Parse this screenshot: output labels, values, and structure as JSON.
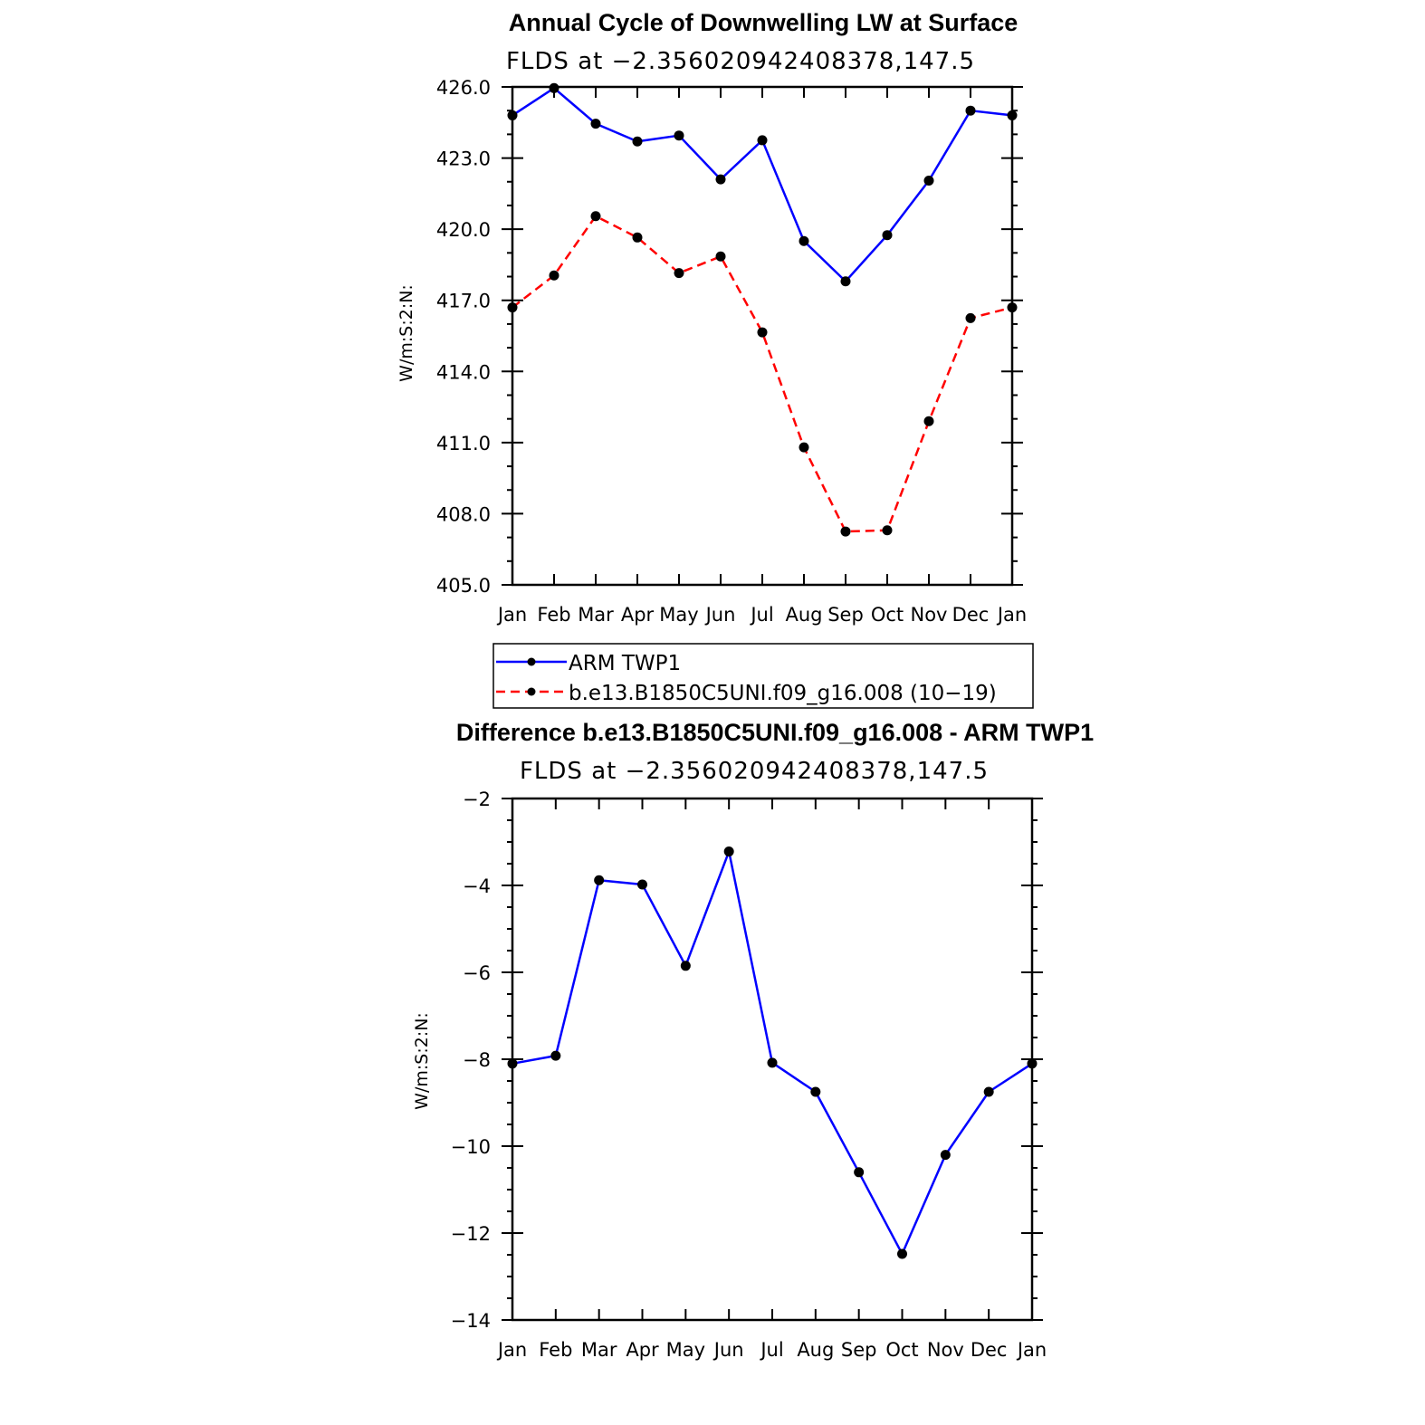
{
  "chart_data": [
    {
      "type": "line",
      "title": "Annual Cycle of Downwelling LW at Surface",
      "subtitle": "FLDS at −2.356020942408378,147.5",
      "ylabel": "W/m:S:2:N:",
      "xlabel": "",
      "categories": [
        "Jan",
        "Feb",
        "Mar",
        "Apr",
        "May",
        "Jun",
        "Jul",
        "Aug",
        "Sep",
        "Oct",
        "Nov",
        "Dec",
        "Jan"
      ],
      "ylim": [
        405.0,
        426.0
      ],
      "yticks": [
        "426.0",
        "423.0",
        "420.0",
        "417.0",
        "414.0",
        "411.0",
        "408.0",
        "405.0"
      ],
      "ytick_values": [
        426,
        423,
        420,
        417,
        414,
        411,
        408,
        405
      ],
      "grid": false,
      "legend_position": "below",
      "series": [
        {
          "name": "ARM TWP1",
          "color": "#0000ff",
          "dash": "solid",
          "marker": "dot",
          "values": [
            424.8,
            425.95,
            424.45,
            423.7,
            423.95,
            422.1,
            423.75,
            419.5,
            417.8,
            419.75,
            422.05,
            425.0,
            424.8
          ]
        },
        {
          "name": "b.e13.B1850C5UNI.f09_g16.008 (10−19)",
          "color": "#ff0000",
          "dash": "dashed",
          "marker": "dot",
          "values": [
            416.7,
            418.05,
            420.55,
            419.65,
            418.15,
            418.85,
            415.65,
            410.8,
            407.25,
            407.3,
            411.9,
            416.25,
            416.7
          ]
        }
      ]
    },
    {
      "type": "line",
      "title": "Difference b.e13.B1850C5UNI.f09_g16.008 - ARM TWP1",
      "subtitle": "FLDS at −2.356020942408378,147.5",
      "ylabel": "W/m:S:2:N:",
      "xlabel": "",
      "categories": [
        "Jan",
        "Feb",
        "Mar",
        "Apr",
        "May",
        "Jun",
        "Jul",
        "Aug",
        "Sep",
        "Oct",
        "Nov",
        "Dec",
        "Jan"
      ],
      "ylim": [
        -14,
        -2
      ],
      "yticks": [
        "−2",
        "−4",
        "−6",
        "−8",
        "−10",
        "−12",
        "−14"
      ],
      "ytick_values": [
        -2,
        -4,
        -6,
        -8,
        -10,
        -12,
        -14
      ],
      "grid": false,
      "series": [
        {
          "color": "#0000ff",
          "dash": "solid",
          "marker": "dot",
          "values": [
            -8.1,
            -7.92,
            -3.88,
            -3.98,
            -5.85,
            -3.22,
            -8.08,
            -8.75,
            -10.6,
            -12.48,
            -10.2,
            -8.75,
            -8.1
          ]
        }
      ]
    }
  ]
}
